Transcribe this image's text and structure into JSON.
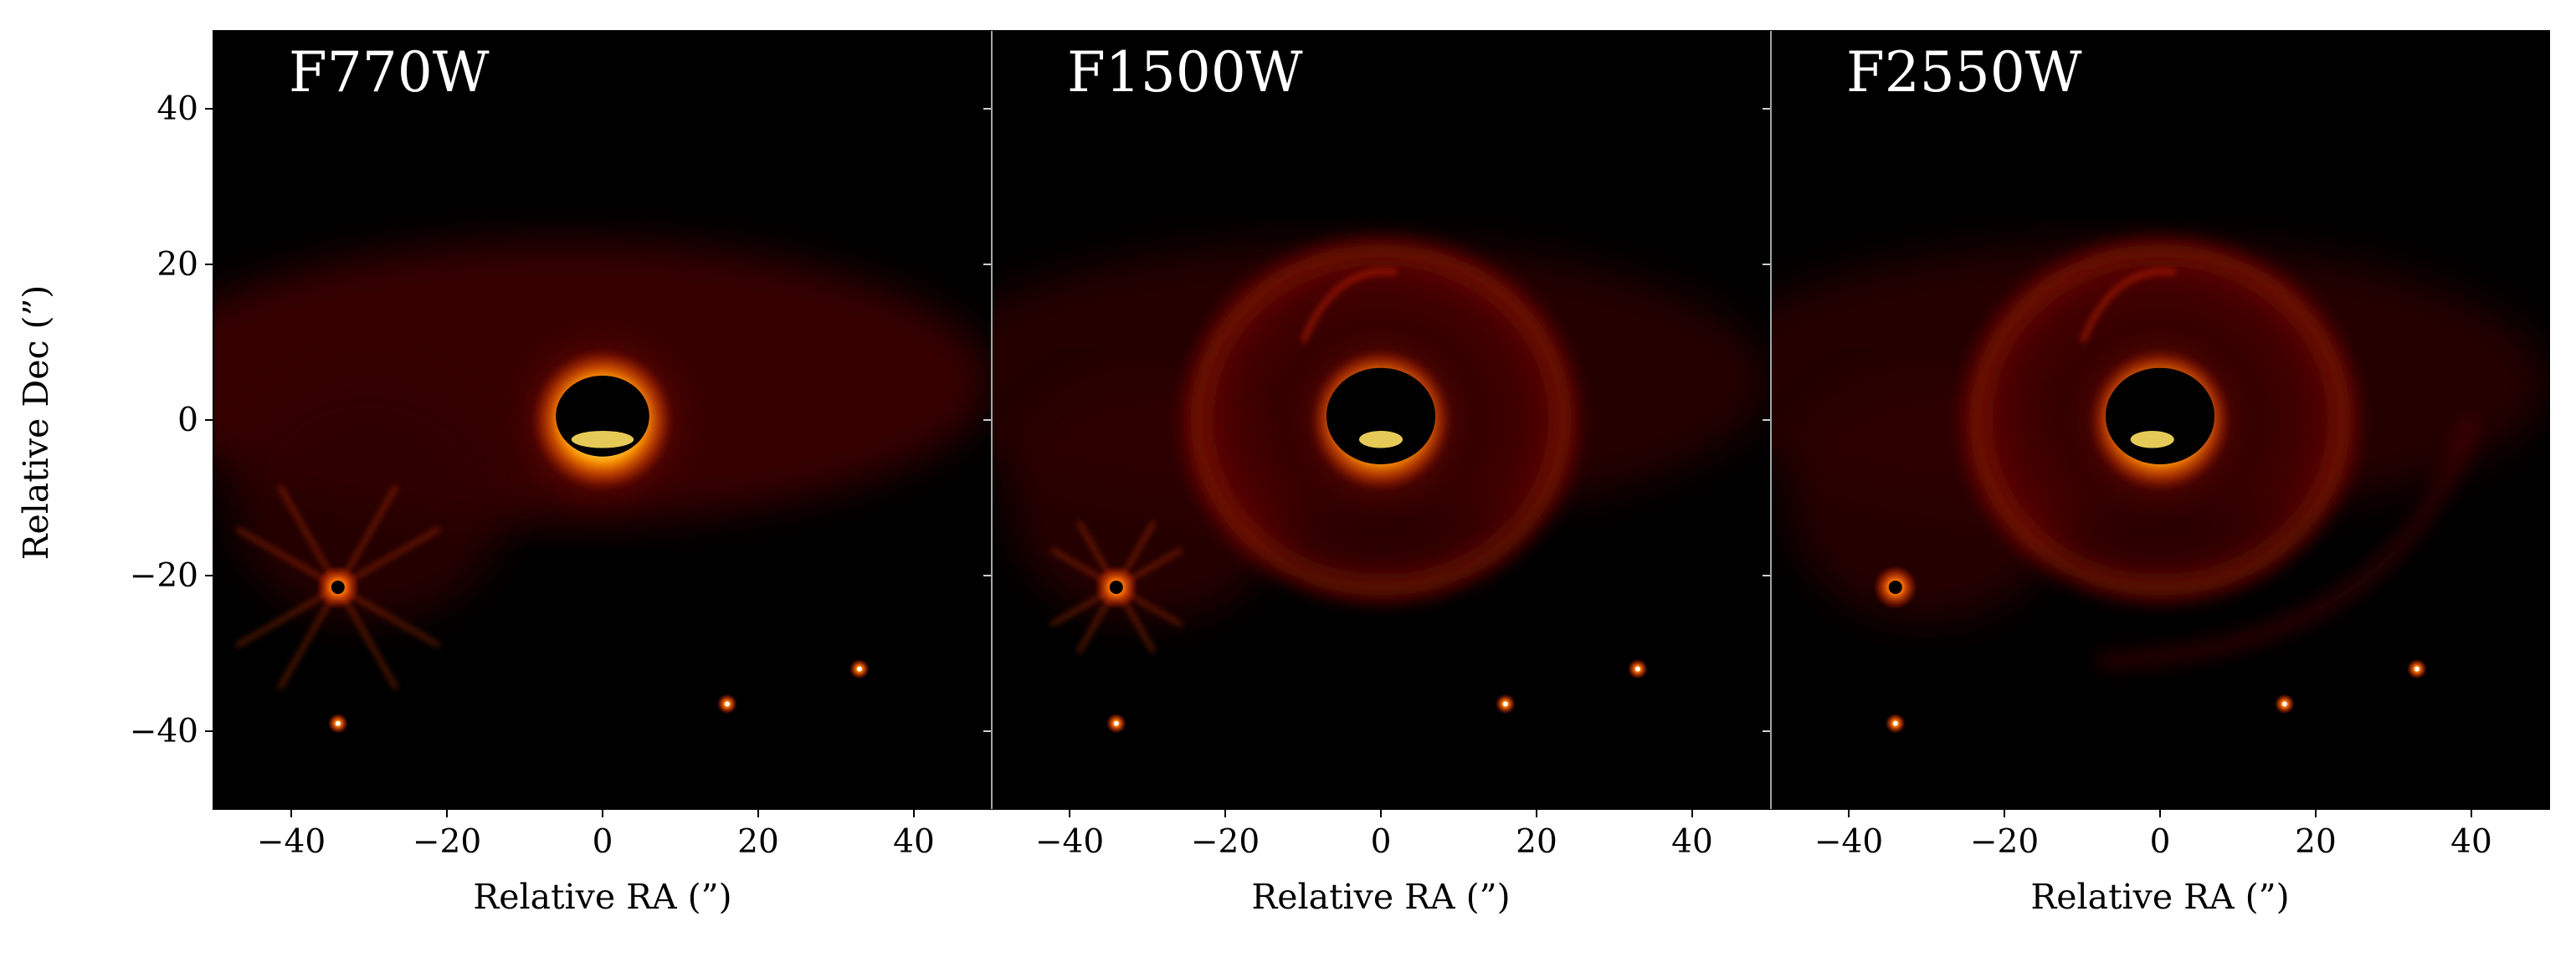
{
  "figure": {
    "ylabel": "Relative Dec (”)",
    "panels": [
      {
        "label": "F770W",
        "xlabel": "Relative RA (”)"
      },
      {
        "label": "F1500W",
        "xlabel": "Relative RA (”)"
      },
      {
        "label": "F2550W",
        "xlabel": "Relative RA (”)"
      }
    ],
    "x_ticks": [
      -40,
      -20,
      0,
      20,
      40
    ],
    "y_ticks": [
      40,
      20,
      0,
      -20,
      -40
    ],
    "x_tick_labels": [
      "−40",
      "−20",
      "0",
      "20",
      "40"
    ],
    "y_tick_labels": [
      "40",
      "20",
      "0",
      "−20",
      "−40"
    ],
    "xlim": [
      -50,
      50
    ],
    "ylim": [
      -50,
      50
    ],
    "colormap": [
      "#000000",
      "#3a0000",
      "#8b0a00",
      "#d83a00",
      "#ff9a00",
      "#ffff70"
    ],
    "sources": [
      {
        "name": "central-star",
        "ra": 0,
        "dec": 0
      },
      {
        "name": "bright-star-left",
        "ra": -34,
        "dec": -21.5
      },
      {
        "name": "star-lower-left",
        "ra": -34,
        "dec": -39
      },
      {
        "name": "star-lower-middle",
        "ra": 16,
        "dec": -36.5
      },
      {
        "name": "star-right",
        "ra": 33,
        "dec": -32
      }
    ]
  }
}
